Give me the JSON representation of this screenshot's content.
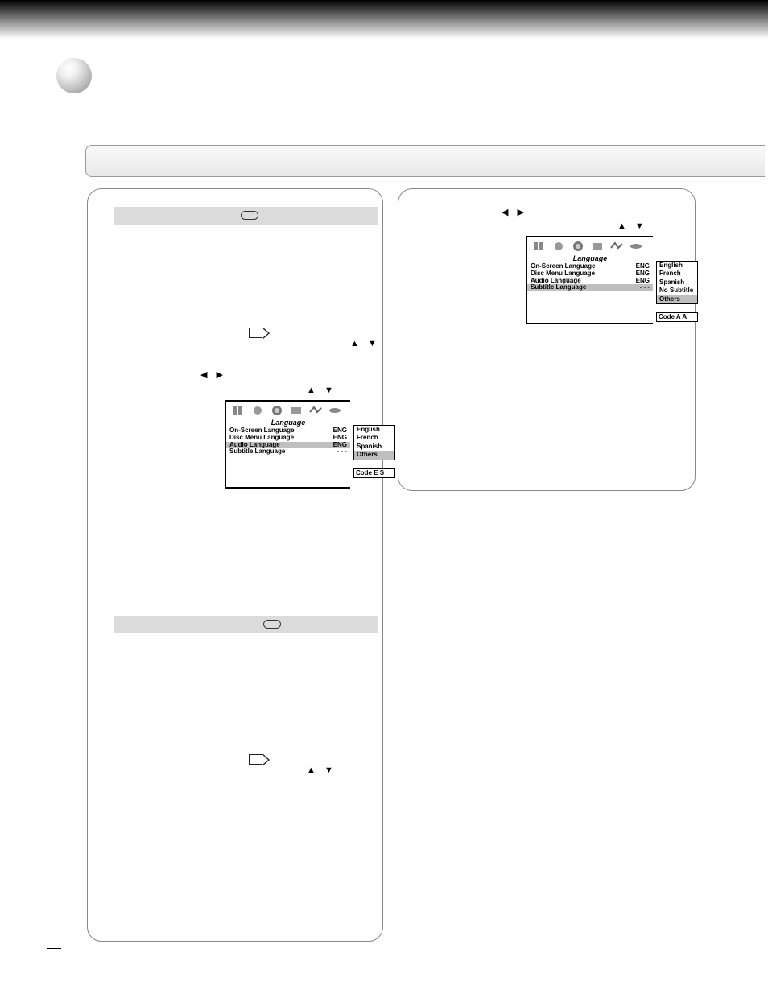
{
  "osd1": {
    "title": "Language",
    "rows": [
      {
        "label": "On-Screen Language",
        "val": "ENG",
        "hl": false
      },
      {
        "label": "Disc Menu Language",
        "val": "ENG",
        "hl": false
      },
      {
        "label": "Audio Language",
        "val": "ENG",
        "hl": true
      },
      {
        "label": "Subtitle Language",
        "val": "- - -",
        "hl": false
      }
    ],
    "options": [
      {
        "text": "English",
        "hl": false
      },
      {
        "text": "French",
        "hl": false
      },
      {
        "text": "Spanish",
        "hl": false
      },
      {
        "text": "Others",
        "hl": true
      }
    ],
    "code": "Code  E  S"
  },
  "osd2": {
    "title": "Language",
    "rows": [
      {
        "label": "On-Screen Language",
        "val": "ENG",
        "hl": false
      },
      {
        "label": "Disc Menu Language",
        "val": "ENG",
        "hl": false
      },
      {
        "label": "Audio Language",
        "val": "ENG",
        "hl": false
      },
      {
        "label": "Subtitle Language",
        "val": "- - -",
        "hl": true
      }
    ],
    "options": [
      {
        "text": "English",
        "hl": false
      },
      {
        "text": "French",
        "hl": false
      },
      {
        "text": "Spanish",
        "hl": false
      },
      {
        "text": "No Subtitle",
        "hl": false
      },
      {
        "text": "Others",
        "hl": true
      }
    ],
    "code": "Code  A  A"
  }
}
